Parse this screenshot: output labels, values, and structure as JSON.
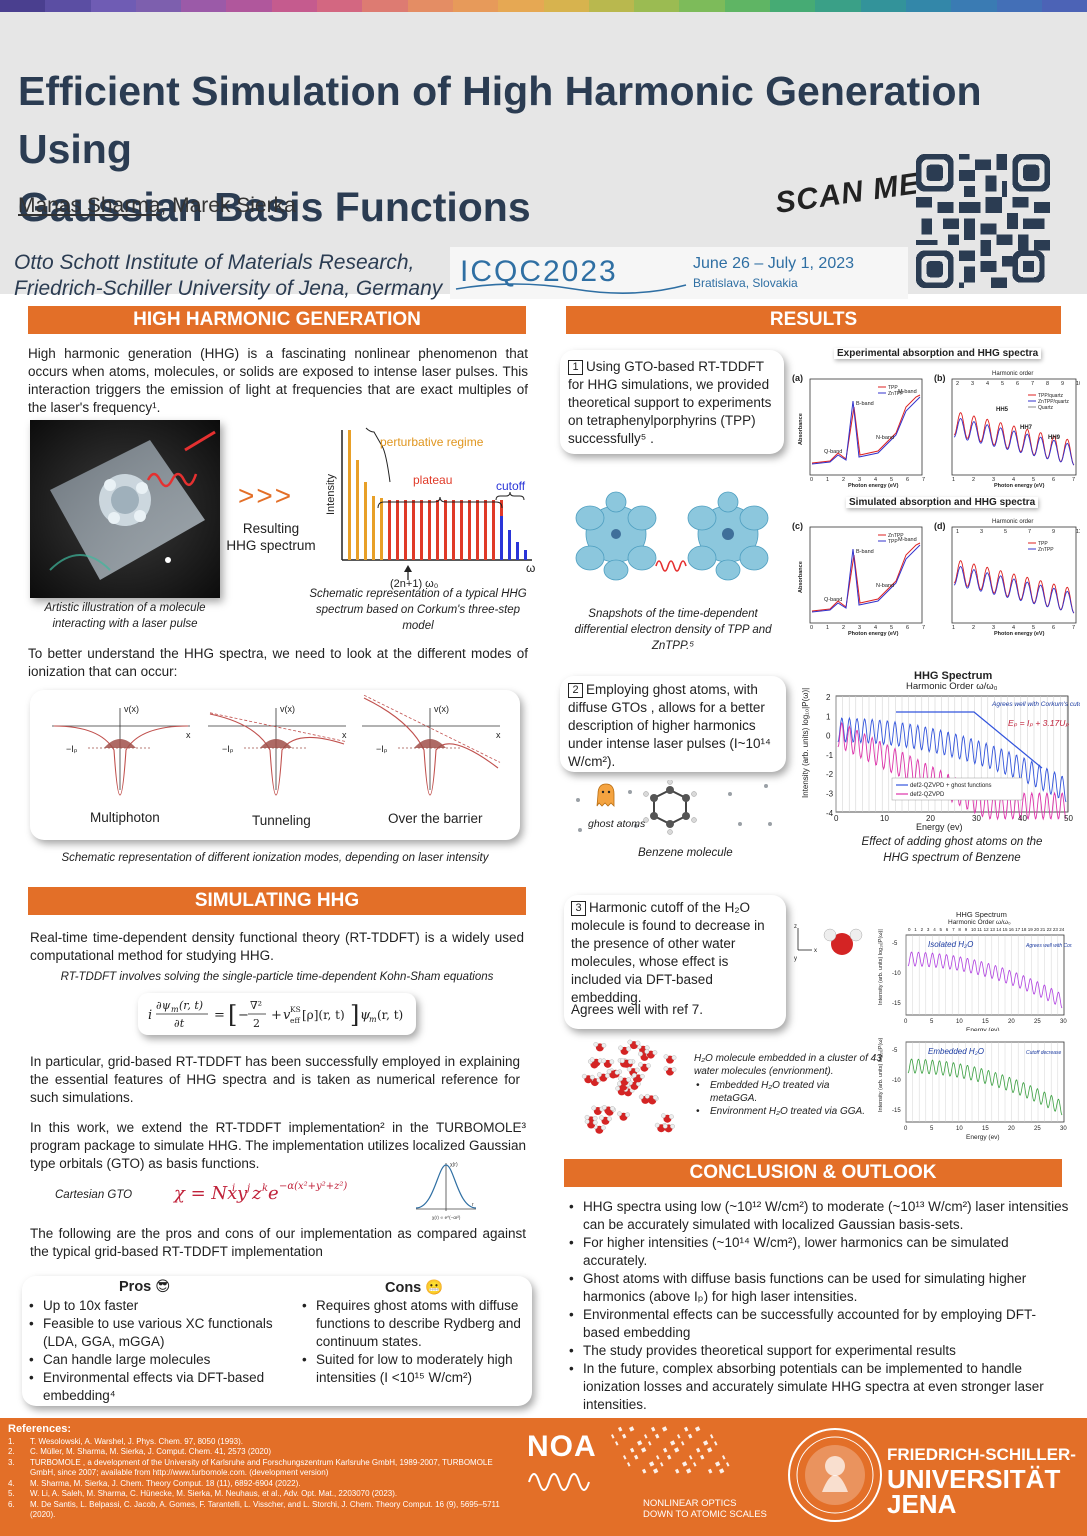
{
  "rainbow": [
    "#4a3f8f",
    "#5b4ea3",
    "#6f5cb4",
    "#7d5fae",
    "#9b5aa8",
    "#b0579c",
    "#c55b8e",
    "#d36781",
    "#dd7b72",
    "#e48d64",
    "#e79a5a",
    "#e6a853",
    "#d7b34e",
    "#b9b84e",
    "#9bbb52",
    "#7dbb5a",
    "#5fb564",
    "#46ab74",
    "#3aa087",
    "#33939a",
    "#3387a9",
    "#3a7bb3",
    "#436fb7",
    "#4c63b6"
  ],
  "header": {
    "title_line1": "Efficient Simulation of High Harmonic Generation Using",
    "title_line2": "Gaussian Basis Functions",
    "author1": "Manas Sharma",
    "author_sep": ", ",
    "author2": "Marek Sierka",
    "affil_line1": "Otto Schott Institute of Materials Research,",
    "affil_line2": "Friedrich-Schiller University of Jena, Germany",
    "conf_logo": "ICQC2023",
    "conf_dates": "June 26 – July 1, 2023",
    "conf_place": "Bratislava, Slovakia",
    "scan_me": "SCAN ME"
  },
  "hhg": {
    "heading": "HIGH HARMONIC GENERATION",
    "intro": "High harmonic generation (HHG) is a fascinating nonlinear phenomenon that occurs when atoms, molecules, or solids are exposed to intense laser pulses. This interaction triggers the emission of light at frequencies that are exact multiples of the laser's frequency¹.",
    "artist_caption": "Artistic illustration of a molecule interacting with a laser pulse",
    "arrows": ">>>",
    "resulting": "Resulting HHG spectrum",
    "spectrum_labels": {
      "perturbative": "perturbative regime",
      "plateau": "plateau",
      "cutoff": "cutoff",
      "intensity": "Intensity",
      "omega": "ω",
      "order": "(2n+1) ω₀"
    },
    "spectrum_caption": "Schematic representation of a typical HHG spectrum based on Corkum's three-step model",
    "modes_text": "To better understand the HHG spectra, we need to look at the different modes of ionization that can occur:",
    "modes": [
      "Multiphoton",
      "Tunneling",
      "Over the barrier"
    ],
    "vx": "v(x)",
    "x": "x",
    "ip": "−Iₚ",
    "modes_caption": "Schematic representation of different ionization modes, depending on laser intensity"
  },
  "sim": {
    "heading": "SIMULATING HHG",
    "p1": "Real-time time-dependent density functional theory (RT-TDDFT) is a widely used computational method for studying HHG.",
    "p1_caption": "RT-TDDFT involves solving the single-particle time-dependent Kohn-Sham equations",
    "ks_eq": "i ∂ψm(r,t)/∂t = [ −∇²/2 + v_eff^KS[ρ](r,t) ] ψm(r,t)",
    "p2": "In particular, grid-based RT-TDDFT has been successfully employed in explaining the essential features of HHG spectra and is taken as numerical reference for such simulations.",
    "p3": "In this work, we extend the RT-TDDFT implementation² in the TURBOMOLE³ program package to simulate HHG. The implementation utilizes localized Gaussian type orbitals (GTO) as basis functions.",
    "gto_label": "Cartesian GTO",
    "gto_eq": "χ = N xⁱ yʲ zᵏ e^(−α(x²+y²+z²))",
    "p4": "The following are the pros and cons of our implementation as compared against the typical grid-based RT-TDDFT implementation",
    "pros_title": "Pros 😎",
    "pros": [
      "Up to 10x faster",
      "Feasible to use various XC functionals (LDA, GGA, mGGA)",
      "Can handle large molecules",
      "Environmental effects via DFT-based embedding⁴"
    ],
    "cons_title": "Cons 😬",
    "cons": [
      "Requires ghost atoms with diffuse functions to describe Rydberg and continuum states.",
      "Suited for low to moderately high intensities (I <10¹⁵ W/cm²)"
    ]
  },
  "results": {
    "heading": "RESULTS",
    "r1_num": "1",
    "r1": "Using GTO-based RT-TDDFT for HHG simulations, we provided theoretical support to experiments on tetraphenylporphyrins (TPP) successfully⁵ .",
    "exp_title": "Experimental absorption and HHG spectra",
    "sim_title": "Simulated absorption and HHG spectra",
    "snap_caption": "Snapshots of the time-dependent differential electron density of TPP and ZnTPP.⁵",
    "panel_a": "(a)",
    "panel_b": "(b)",
    "panel_c": "(c)",
    "panel_d": "(d)",
    "photon_energy": "Photon energy (eV)",
    "absorbance": "Absorbance",
    "harmonic_order": "Harmonic order",
    "bands": {
      "b": "B-band",
      "q": "Q-band",
      "n": "N-band",
      "m": "M-band"
    },
    "hh": {
      "h5": "HH5",
      "h7": "HH7",
      "h9": "HH9"
    },
    "legend_ab": [
      "TPP",
      "ZnTPP"
    ],
    "legend_b": [
      "TPP/quartz",
      "ZnTPP/quartz",
      "Quartz"
    ],
    "r2_num": "2",
    "r2": "Employing ghost atoms, with diffuse GTOs , allows for a better description of higher harmonics under intense laser pulses (I~10¹⁴ W/cm²).",
    "ghost_label": "ghost atoms",
    "benzene_label": "Benzene molecule",
    "hhg_spec_title": "HHG Spectrum",
    "hhg_spec_sub": "Harmonic Order ω/ω₀",
    "hhg_spec_note": "Agrees well with Corkum's cutoff law",
    "hhg_spec_eq": "Eₚ = Iₚ + 3.17Uₚ",
    "hhg_spec_y": "Intensity (arb. units) log₁₀|P(ω)|",
    "hhg_spec_x": "Energy (ev)",
    "hhg_legend": [
      "def2-QZVPD + ghost functions",
      "def2-QZVPD"
    ],
    "hhg_caption": "Effect of adding ghost atoms on the HHG spectrum of Benzene",
    "r3_num": "3",
    "r3": "Harmonic cutoff of the H₂O molecule is found to decrease in the presence of other water molecules, whose effect is included via DFT-based embedding.",
    "r3b": "Agrees well with ref 7.",
    "water_caption": "H₂O molecule embedded in a cluster of 43 water molecules (envrionment).",
    "water_bullets": [
      "Embedded H₂O treated via metaGGA.",
      "Environment H₂O treated via GGA."
    ],
    "isolated": "Isolated H₂O",
    "embedded": "Embedded H₂O",
    "iso_note": "Agrees well with Corkum's cutoff law",
    "emb_note": "Cutoff decrease"
  },
  "conclusion": {
    "heading": "CONCLUSION & OUTLOOK",
    "items": [
      "HHG spectra using low (~10¹² W/cm²) to moderate (~10¹³ W/cm²) laser intensities can be accurately simulated with localized Gaussian basis-sets.",
      "For higher intensities (~10¹⁴ W/cm²), lower harmonics can be simulated accurately.",
      "Ghost atoms with diffuse basis functions can be used for simulating higher harmonics (above Iₚ) for high laser intensities.",
      "Environmental effects can be successfully accounted for by employing DFT-based embedding",
      "The study provides theoretical support for experimental results",
      "In the future, complex absorbing potentials can be implemented to handle ionization losses and accurately simulate HHG spectra at even stronger laser intensities."
    ]
  },
  "footer": {
    "refs_title": "References:",
    "refs": [
      [
        "1.",
        "T. Wesolowski, A. Warshel, J. Phys. Chem. 97, 8050 (1993)."
      ],
      [
        "2.",
        "C. Müller, M. Sharma, M. Sierka, J. Comput. Chem. 41, 2573 (2020)"
      ],
      [
        "3.",
        "TURBOMOLE , a development of the University of Karlsruhe and Forschungszentrum Karlsruhe GmbH, 1989-2007, TURBOMOLE GmbH, since 2007; available from http://www.turbomole.com. (development version)"
      ],
      [
        "4.",
        "M. Sharma, M. Sierka, J. Chem. Theory Comput. 18 (11), 6892-6904 (2022)."
      ],
      [
        "5.",
        "W. Li, A. Saleh, M. Sharma, C. Hünecke, M. Sierka, M. Neuhaus, et al., Adv. Opt. Mat., 2203070 (2023)."
      ],
      [
        "6.",
        "M. De Santis, L. Belpassi, C. Jacob, A. Gomes, F. Tarantelli, L. Visscher, and L. Storchi, J. Chem. Theory Comput. 16 (9), 5695–5711 (2020)."
      ]
    ],
    "noa": "NOA",
    "noa_sub1": "NONLINEAR OPTICS",
    "noa_sub2": "DOWN TO ATOMIC SCALES",
    "uni1": "FRIEDRICH-SCHILLER-",
    "uni2": "UNIVERSITÄT",
    "uni3": "JENA"
  }
}
